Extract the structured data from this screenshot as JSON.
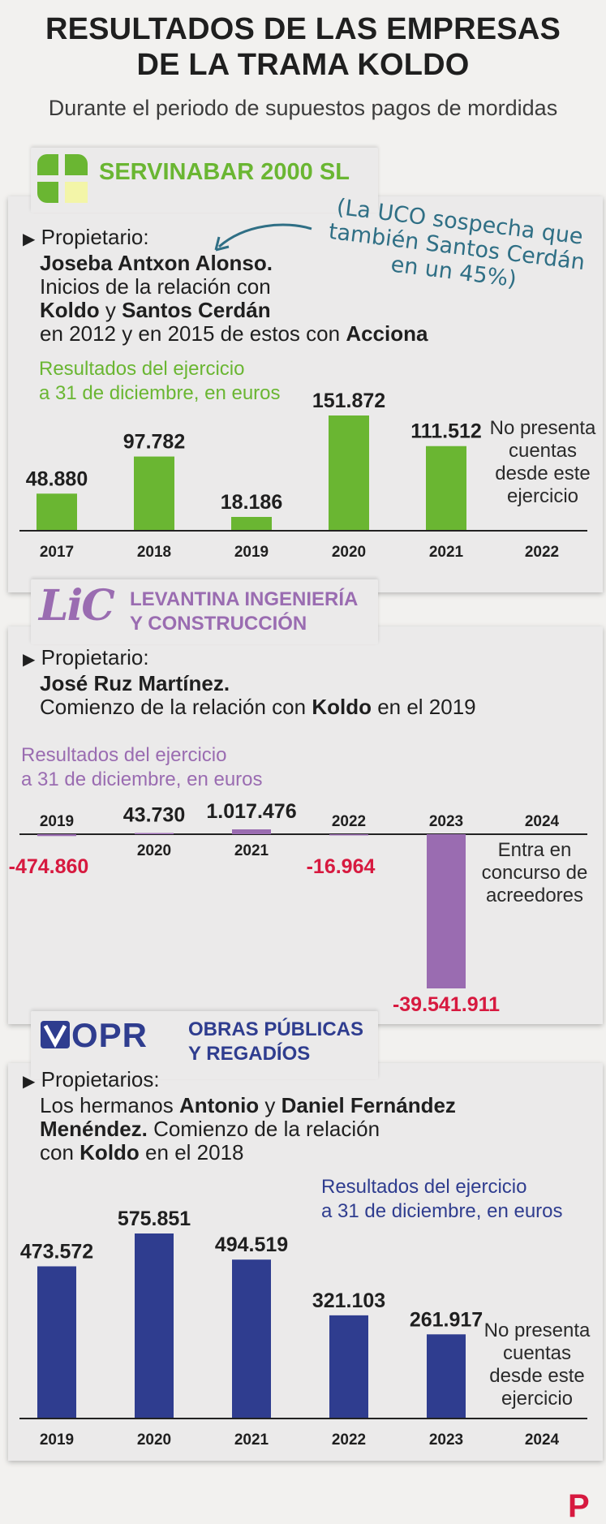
{
  "title_line1": "RESULTADOS DE LAS EMPRESAS",
  "title_line2": "DE LA TRAMA KOLDO",
  "subtitle": "Durante el periodo de supuestos pagos de mordidas",
  "colors": {
    "servinabar": "#6ab632",
    "levantina": "#9a6cb1",
    "opr": "#2f3d8f",
    "negative": "#d7193f",
    "uco": "#2f6f85"
  },
  "servinabar": {
    "name": "SERVINABAR 2000 SL",
    "logo_icon": "green-cross-logo",
    "owner_prefix": "Propietario:",
    "owner_name": "Joseba Antxon Alonso.",
    "rel_1": "Inicios de la relación con",
    "rel_koldo": "Koldo",
    "rel_y": " y ",
    "rel_santos": "Santos Cerdán",
    "rel_2": "en 2012 y en 2015 de estos con",
    "rel_acciona": "Acciona",
    "uco_note_1": "(La UCO sospecha que",
    "uco_note_2": "también Santos Cerdán",
    "uco_note_3": "en un 45%)",
    "results_label_1": "Resultados del ejercicio",
    "results_label_2": "a 31 de diciembre, en euros",
    "note_1": "No presenta",
    "note_2": "cuentas",
    "note_3": "desde este",
    "note_4": "ejercicio"
  },
  "levantina": {
    "logo_text": "LiC",
    "name_1": "LEVANTINA INGENIERÍA",
    "name_2": "Y CONSTRUCCIÓN",
    "owner_prefix": "Propietario:",
    "owner_name": "José Ruz Martínez.",
    "rel_1": "Comienzo de la relación con",
    "rel_koldo": "Koldo",
    "rel_2": "en el 2019",
    "results_label_1": "Resultados del ejercicio",
    "results_label_2": "a 31 de diciembre, en euros",
    "note_1": "Entra en",
    "note_2": "concurso de",
    "note_3": "acreedores"
  },
  "opr": {
    "logo_text": "OPR",
    "name_1": "OBRAS PÚBLICAS",
    "name_2": "Y REGADÍOS",
    "owner_prefix": "Propietarios:",
    "rel_1": "Los hermanos",
    "rel_antonio": "Antonio",
    "rel_y": " y ",
    "rel_daniel": "Daniel Fernández",
    "rel_menendez": "Menéndez.",
    "rel_2": " Comienzo de la relación",
    "rel_3": "con",
    "rel_koldo": "Koldo",
    "rel_4": "en el 2018",
    "results_label_1": "Resultados del ejercicio",
    "results_label_2": "a 31 de diciembre, en euros",
    "note_1": "No presenta",
    "note_2": "cuentas",
    "note_3": "desde este",
    "note_4": "ejercicio"
  },
  "chart_data": [
    {
      "type": "bar",
      "title": "SERVINABAR 2000 SL",
      "ylabel": "Resultados del ejercicio a 31 de diciembre, en euros",
      "categories": [
        "2017",
        "2018",
        "2019",
        "2020",
        "2021",
        "2022"
      ],
      "values": [
        48880,
        97782,
        18186,
        151872,
        111512,
        null
      ],
      "value_labels": [
        "48.880",
        "97.782",
        "18.186",
        "151.872",
        "111.512",
        ""
      ],
      "color": "#6ab632"
    },
    {
      "type": "bar",
      "title": "LEVANTINA INGENIERÍA Y CONSTRUCCIÓN",
      "ylabel": "Resultados del ejercicio a 31 de diciembre, en euros",
      "categories": [
        "2019",
        "2020",
        "2021",
        "2022",
        "2023",
        "2024"
      ],
      "values": [
        -474860,
        43730,
        1017476,
        -16964,
        -39541911,
        null
      ],
      "value_labels": [
        "-474.860",
        "43.730",
        "1.017.476",
        "-16.964",
        "-39.541.911",
        ""
      ],
      "color": "#9a6cb1"
    },
    {
      "type": "bar",
      "title": "OBRAS PÚBLICAS Y REGADÍOS",
      "ylabel": "Resultados del ejercicio a 31 de diciembre, en euros",
      "categories": [
        "2019",
        "2020",
        "2021",
        "2022",
        "2023",
        "2024"
      ],
      "values": [
        473572,
        575851,
        494519,
        321103,
        261917,
        null
      ],
      "value_labels": [
        "473.572",
        "575.851",
        "494.519",
        "321.103",
        "261.917",
        ""
      ],
      "color": "#2f3d8f"
    }
  ],
  "footer_logo": "P"
}
